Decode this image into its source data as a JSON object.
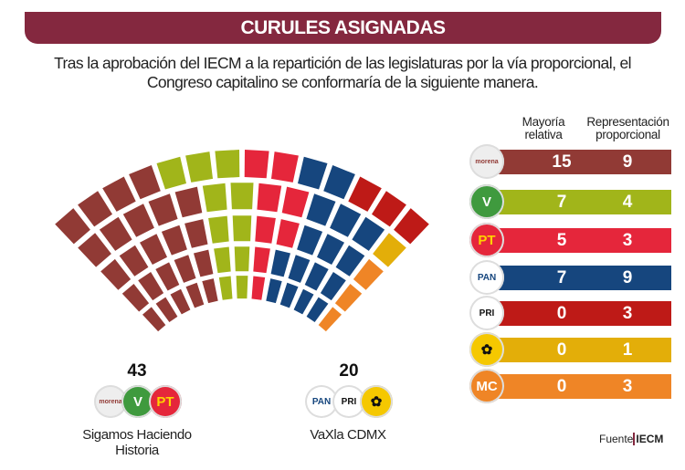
{
  "header": {
    "title": "CURULES ASIGNADAS",
    "subtitle_line1": "Tras la aprobación del IECM a la repartición de las legislaturas por la vía proporcional, el",
    "subtitle_line2": "Congreso capitalino se conformaría de la siguiente manera."
  },
  "table": {
    "col1_line1": "Mayoría",
    "col1_line2": "relativa",
    "col2_line1": "Representación",
    "col2_line2": "proporcional",
    "rows": [
      {
        "party": "morena",
        "logo_text": "morena",
        "mr": "15",
        "rp": "9",
        "color": "#913a35",
        "logo_bg": "#eeeeee",
        "logo_fg": "#913a35"
      },
      {
        "party": "PVEM",
        "logo_text": "V",
        "mr": "7",
        "rp": "4",
        "color": "#a1b51a",
        "logo_bg": "#3f9a3e",
        "logo_fg": "#ffffff"
      },
      {
        "party": "PT",
        "logo_text": "PT",
        "mr": "5",
        "rp": "3",
        "color": "#e5263b",
        "logo_bg": "#e5263b",
        "logo_fg": "#ffd200"
      },
      {
        "party": "PAN",
        "logo_text": "PAN",
        "mr": "7",
        "rp": "9",
        "color": "#16467e",
        "logo_bg": "#ffffff",
        "logo_fg": "#16467e"
      },
      {
        "party": "PRI",
        "logo_text": "PRI",
        "mr": "0",
        "rp": "3",
        "color": "#be1a17",
        "logo_bg": "#ffffff",
        "logo_fg": "#111111"
      },
      {
        "party": "PRD",
        "logo_text": "✿",
        "mr": "0",
        "rp": "1",
        "color": "#e3ae09",
        "logo_bg": "#f5c800",
        "logo_fg": "#111111"
      },
      {
        "party": "MC",
        "logo_text": "MC",
        "mr": "0",
        "rp": "3",
        "color": "#ef8526",
        "logo_bg": "#ef8526",
        "logo_fg": "#ffffff"
      }
    ]
  },
  "coalitions": [
    {
      "name_line1": "Sigamos Haciendo",
      "name_line2": "Historia",
      "seats": "43",
      "parties": [
        "morena",
        "PVEM",
        "PT"
      ]
    },
    {
      "name_line1": "VaXla CDMX",
      "name_line2": "",
      "seats": "20",
      "parties": [
        "PAN",
        "PRI",
        "PRD"
      ]
    }
  ],
  "source": {
    "label": "Fuente",
    "name": "IECM"
  },
  "chart_data": {
    "type": "parliament",
    "title": "CURULES ASIGNADAS",
    "total_seats": 66,
    "categories": [
      "morena",
      "PVEM",
      "PT",
      "PAN",
      "PRI",
      "PRD",
      "MC"
    ],
    "series": [
      {
        "name": "Mayoría relativa",
        "values": [
          15,
          7,
          5,
          7,
          0,
          0,
          0
        ]
      },
      {
        "name": "Representación proporcional",
        "values": [
          9,
          4,
          3,
          9,
          3,
          1,
          3
        ]
      }
    ],
    "totals": [
      24,
      11,
      8,
      16,
      3,
      1,
      3
    ],
    "colors": [
      "#913a35",
      "#a1b51a",
      "#e5263b",
      "#16467e",
      "#be1a17",
      "#e3ae09",
      "#ef8526"
    ],
    "coalitions": [
      {
        "name": "Sigamos Haciendo Historia",
        "seats": 43,
        "parties": [
          "morena",
          "PVEM",
          "PT"
        ]
      },
      {
        "name": "VaXla CDMX",
        "seats": 20,
        "parties": [
          "PAN",
          "PRI",
          "PRD"
        ]
      }
    ],
    "rows_layout": [
      {
        "row": 1,
        "seq": [
          [
            "morena",
            4
          ],
          [
            "PVEM",
            3
          ],
          [
            "PT",
            2
          ],
          [
            "PAN",
            2
          ],
          [
            "PRI",
            3
          ]
        ]
      },
      {
        "row": 2,
        "seq": [
          [
            "morena",
            5
          ],
          [
            "PVEM",
            2
          ],
          [
            "PT",
            2
          ],
          [
            "PAN",
            3
          ],
          [
            "PRD",
            1
          ]
        ]
      },
      {
        "row": 3,
        "seq": [
          [
            "morena",
            5
          ],
          [
            "PVEM",
            2
          ],
          [
            "PT",
            2
          ],
          [
            "PAN",
            3
          ],
          [
            "MC",
            1
          ]
        ]
      },
      {
        "row": 4,
        "seq": [
          [
            "morena",
            5
          ],
          [
            "PVEM",
            2
          ],
          [
            "PT",
            1
          ],
          [
            "PAN",
            4
          ],
          [
            "MC",
            1
          ]
        ]
      },
      {
        "row": 5,
        "seq": [
          [
            "morena",
            5
          ],
          [
            "PVEM",
            2
          ],
          [
            "PT",
            1
          ],
          [
            "PAN",
            4
          ],
          [
            "MC",
            1
          ]
        ]
      }
    ],
    "source": "IECM"
  }
}
